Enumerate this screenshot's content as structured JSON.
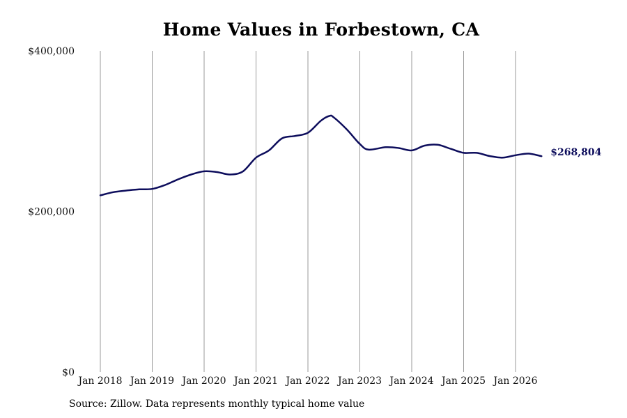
{
  "chart_data": {
    "type": "line",
    "title": "Home Values in Forbestown, CA",
    "xlabel": "",
    "ylabel": "",
    "ylim": [
      0,
      400000
    ],
    "xlim": [
      "2018-01",
      "2026-07"
    ],
    "grid": "vertical",
    "y_ticks": [
      {
        "value": 0,
        "label": "$0"
      },
      {
        "value": 200000,
        "label": "$200,000"
      },
      {
        "value": 400000,
        "label": "$400,000"
      }
    ],
    "x_ticks": [
      {
        "value": "2018-01",
        "label": "Jan 2018"
      },
      {
        "value": "2019-01",
        "label": "Jan 2019"
      },
      {
        "value": "2020-01",
        "label": "Jan 2020"
      },
      {
        "value": "2021-01",
        "label": "Jan 2021"
      },
      {
        "value": "2022-01",
        "label": "Jan 2022"
      },
      {
        "value": "2023-01",
        "label": "Jan 2023"
      },
      {
        "value": "2024-01",
        "label": "Jan 2024"
      },
      {
        "value": "2025-01",
        "label": "Jan 2025"
      },
      {
        "value": "2026-01",
        "label": "Jan 2026"
      }
    ],
    "series": [
      {
        "color": "#0d0d5c",
        "points": [
          [
            "2018-01",
            220000
          ],
          [
            "2018-04",
            224000
          ],
          [
            "2018-07",
            226000
          ],
          [
            "2018-10",
            227500
          ],
          [
            "2019-01",
            228000
          ],
          [
            "2019-04",
            233000
          ],
          [
            "2019-07",
            240000
          ],
          [
            "2019-10",
            246000
          ],
          [
            "2020-01",
            250000
          ],
          [
            "2020-04",
            249000
          ],
          [
            "2020-07",
            246000
          ],
          [
            "2020-10",
            250000
          ],
          [
            "2021-01",
            267000
          ],
          [
            "2021-04",
            276000
          ],
          [
            "2021-07",
            291000
          ],
          [
            "2021-10",
            294000
          ],
          [
            "2022-01",
            298000
          ],
          [
            "2022-04",
            313000
          ],
          [
            "2022-06",
            319000
          ],
          [
            "2022-07",
            317000
          ],
          [
            "2022-10",
            302000
          ],
          [
            "2023-01",
            284000
          ],
          [
            "2023-03",
            277000
          ],
          [
            "2023-07",
            280000
          ],
          [
            "2023-10",
            279000
          ],
          [
            "2024-01",
            276000
          ],
          [
            "2024-04",
            282000
          ],
          [
            "2024-07",
            283000
          ],
          [
            "2024-10",
            278000
          ],
          [
            "2025-01",
            273000
          ],
          [
            "2025-04",
            273000
          ],
          [
            "2025-07",
            269000
          ],
          [
            "2025-10",
            267000
          ],
          [
            "2026-01",
            270000
          ],
          [
            "2026-04",
            272000
          ],
          [
            "2026-07",
            268804
          ]
        ]
      }
    ],
    "end_label": "$268,804",
    "source": "Source: Zillow. Data represents monthly typical home value"
  }
}
